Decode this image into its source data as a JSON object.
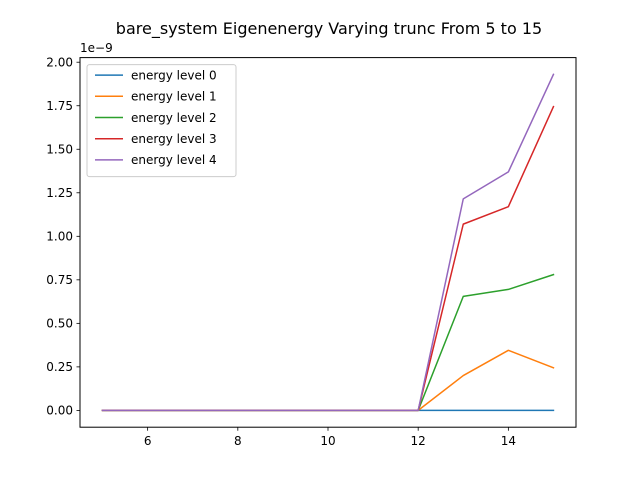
{
  "chart_data": {
    "type": "line",
    "title": "bare_system Eigenenergy Varying trunc From 5 to 15",
    "xlabel": "",
    "ylabel": "",
    "scale_label": "1e−9",
    "xlim": [
      4.5,
      15.5
    ],
    "ylim": [
      -0.0965,
      2.0265
    ],
    "x_ticks": [
      6,
      8,
      10,
      12,
      14
    ],
    "y_ticks": [
      0.0,
      0.25,
      0.5,
      0.75,
      1.0,
      1.25,
      1.5,
      1.75,
      2.0
    ],
    "y_tick_labels": [
      "0.00",
      "0.25",
      "0.50",
      "0.75",
      "1.00",
      "1.25",
      "1.50",
      "1.75",
      "2.00"
    ],
    "grid": false,
    "legend_position": "top-left",
    "x": [
      5,
      6,
      7,
      8,
      9,
      10,
      11,
      12,
      13,
      14,
      15
    ],
    "series": [
      {
        "name": "energy level 0",
        "color": "#1f77b4",
        "values": [
          0,
          0,
          0,
          0,
          0,
          0,
          0,
          0,
          0.0,
          0.0,
          0.0
        ]
      },
      {
        "name": "energy level 1",
        "color": "#ff7f0e",
        "values": [
          0,
          0,
          0,
          0,
          0,
          0,
          0,
          0,
          0.2,
          0.345,
          0.245
        ]
      },
      {
        "name": "energy level 2",
        "color": "#2ca02c",
        "values": [
          0,
          0,
          0,
          0,
          0,
          0,
          0,
          0,
          0.655,
          0.695,
          0.78
        ]
      },
      {
        "name": "energy level 3",
        "color": "#d62728",
        "values": [
          0,
          0,
          0,
          0,
          0,
          0,
          0,
          0,
          1.07,
          1.17,
          1.745
        ]
      },
      {
        "name": "energy level 4",
        "color": "#9467bd",
        "values": [
          0,
          0,
          0,
          0,
          0,
          0,
          0,
          0,
          1.215,
          1.37,
          1.93
        ]
      }
    ]
  }
}
